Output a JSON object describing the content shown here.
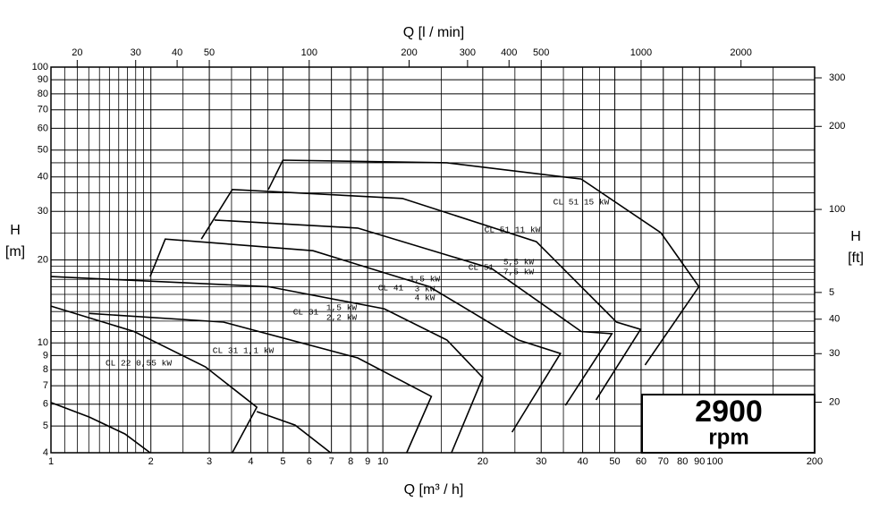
{
  "chart_data": {
    "type": "line",
    "title_top": "Q [l / min]",
    "xlabel": "Q [m³ / h]",
    "ylabel": [
      "H",
      "[m]"
    ],
    "y2label": [
      "H",
      "[ft]"
    ],
    "log_x": true,
    "log_y": true,
    "grid": true,
    "xlim": [
      1,
      200
    ],
    "xticks": [
      1,
      2,
      3,
      4,
      5,
      6,
      7,
      8,
      9,
      10,
      20,
      30,
      40,
      50,
      60,
      70,
      80,
      90,
      100,
      200
    ],
    "xgrid": [
      1.1,
      1.2,
      1.3,
      1.4,
      1.5,
      1.6,
      1.7,
      1.8,
      1.9,
      2.5,
      3.5,
      4.5,
      15,
      25,
      35,
      45,
      150
    ],
    "ylim": [
      4,
      100
    ],
    "yticks": [
      4,
      5,
      6,
      7,
      8,
      9,
      10,
      20,
      30,
      40,
      50,
      60,
      70,
      80,
      90,
      100
    ],
    "ygrid": [
      11,
      12,
      13,
      14,
      15,
      16,
      17,
      18,
      19,
      25,
      35,
      45
    ],
    "x2lim": [
      16.67,
      3333
    ],
    "x2ticks": [
      20,
      30,
      40,
      50,
      100,
      200,
      300,
      400,
      500,
      1000,
      2000
    ],
    "y2lim": [
      13.12,
      328.1
    ],
    "y2ticks": [
      20,
      30,
      40,
      {
        "value": 50,
        "label": "5"
      },
      100,
      200,
      300
    ],
    "series": [
      {
        "color": "#000",
        "x": [
          1,
          1.305,
          1.67,
          1.99
        ],
        "values": [
          6.08,
          5.39,
          4.68,
          4
        ]
      },
      {
        "color": "#000",
        "x": [
          1,
          1.78,
          2.92,
          4.17,
          3.52
        ],
        "values": [
          13.6,
          11.0,
          8.19,
          5.85,
          4
        ]
      },
      {
        "color": "#000",
        "x": [
          4.17,
          5.44,
          6.96
        ],
        "values": [
          5.64,
          5.04,
          4
        ]
      },
      {
        "color": "#000",
        "x": [
          1.305,
          3.31,
          8.4,
          14.0,
          11.8
        ],
        "values": [
          12.8,
          11.9,
          8.83,
          6.4,
          4
        ]
      },
      {
        "color": "#000",
        "x": [
          1,
          4.52,
          10.1,
          15.6,
          20.0,
          16.1
        ],
        "values": [
          17.4,
          16.0,
          13.3,
          10.25,
          7.49,
          4
        ]
      },
      {
        "color": "#000",
        "x": [
          1.99,
          2.21,
          6.16,
          13.8,
          25.6,
          34.3,
          24.5
        ],
        "values": [
          17.4,
          23.8,
          21.6,
          16.0,
          10.25,
          9.16,
          4.75
        ]
      },
      {
        "color": "#000",
        "x": [
          3.11,
          8.4,
          21.3,
          39.6,
          49.0,
          35.5
        ],
        "values": [
          27.9,
          26.1,
          18.6,
          11.0,
          10.8,
          5.94
        ]
      },
      {
        "color": "#000",
        "x": [
          2.84,
          3.52,
          11.45,
          29.0,
          50.6,
          59.8,
          43.9
        ],
        "values": [
          23.8,
          36.0,
          33.4,
          23.3,
          11.9,
          11.2,
          6.22
        ]
      },
      {
        "color": "#000",
        "x": [
          4.52,
          5.0,
          15.6,
          39.6,
          68.8,
          89.6,
          61.7
        ],
        "values": [
          36.0,
          46.0,
          45.0,
          39.3,
          25.1,
          16.0,
          8.32
        ]
      }
    ],
    "annotations": [
      "CL 22  0,55 kW",
      "CL 31  1,1 kW",
      "CL 31",
      "1,5 kW",
      "2,2 kW",
      "CL 41",
      "1,5 kW",
      "3 kW",
      "4 kW",
      "CL 51",
      "5,5 kW",
      "7,5 kW",
      "CL 51  11 kW",
      "CL 51  15 kW"
    ],
    "speed": "2900",
    "speed_unit": "rpm"
  }
}
